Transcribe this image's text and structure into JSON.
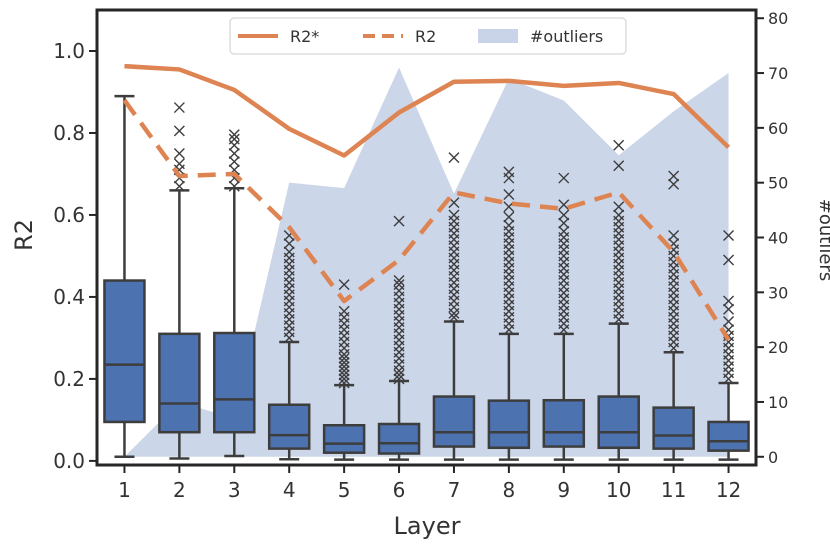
{
  "chart_data": {
    "type": "box",
    "xlabel": "Layer",
    "ylabel": "R2",
    "y2label": "#outliers",
    "categories": [
      "1",
      "2",
      "3",
      "4",
      "5",
      "6",
      "7",
      "8",
      "9",
      "10",
      "11",
      "12"
    ],
    "ylim": [
      -0.01,
      1.1
    ],
    "y2lim": [
      -1.5,
      81.5
    ],
    "yticks": [
      "0.0",
      "0.2",
      "0.4",
      "0.6",
      "0.8",
      "1.0"
    ],
    "y2ticks": [
      "0",
      "10",
      "20",
      "30",
      "40",
      "50",
      "60",
      "70",
      "80"
    ],
    "boxes": [
      {
        "whislo": 0.01,
        "q1": 0.095,
        "med": 0.235,
        "q3": 0.44,
        "whishi": 0.89,
        "fliers": []
      },
      {
        "whislo": 0.006,
        "q1": 0.07,
        "med": 0.14,
        "q3": 0.31,
        "whishi": 0.66,
        "fliers": [
          0.67,
          0.69,
          0.71,
          0.725,
          0.75,
          0.805,
          0.862
        ]
      },
      {
        "whislo": 0.012,
        "q1": 0.07,
        "med": 0.15,
        "q3": 0.312,
        "whishi": 0.665,
        "fliers": [
          0.67,
          0.69,
          0.71,
          0.73,
          0.75,
          0.77,
          0.785,
          0.796
        ]
      },
      {
        "whislo": 0.004,
        "q1": 0.03,
        "med": 0.063,
        "q3": 0.137,
        "whishi": 0.29,
        "fliers": [
          0.3,
          0.315,
          0.33,
          0.345,
          0.36,
          0.375,
          0.39,
          0.405,
          0.42,
          0.435,
          0.45,
          0.465,
          0.48,
          0.495,
          0.51,
          0.53,
          0.55
        ]
      },
      {
        "whislo": 0.003,
        "q1": 0.02,
        "med": 0.042,
        "q3": 0.087,
        "whishi": 0.185,
        "fliers": [
          0.19,
          0.2,
          0.21,
          0.22,
          0.23,
          0.24,
          0.25,
          0.26,
          0.275,
          0.29,
          0.305,
          0.32,
          0.335,
          0.35,
          0.365,
          0.43
        ]
      },
      {
        "whislo": 0.003,
        "q1": 0.018,
        "med": 0.043,
        "q3": 0.09,
        "whishi": 0.195,
        "fliers": [
          0.2,
          0.21,
          0.22,
          0.235,
          0.25,
          0.265,
          0.28,
          0.295,
          0.31,
          0.325,
          0.34,
          0.355,
          0.37,
          0.385,
          0.4,
          0.415,
          0.43,
          0.44,
          0.585
        ]
      },
      {
        "whislo": 0.003,
        "q1": 0.035,
        "med": 0.07,
        "q3": 0.157,
        "whishi": 0.34,
        "fliers": [
          0.35,
          0.36,
          0.375,
          0.39,
          0.405,
          0.42,
          0.435,
          0.45,
          0.465,
          0.48,
          0.495,
          0.51,
          0.525,
          0.54,
          0.555,
          0.57,
          0.585,
          0.6,
          0.63,
          0.74
        ]
      },
      {
        "whislo": 0.003,
        "q1": 0.032,
        "med": 0.07,
        "q3": 0.147,
        "whishi": 0.31,
        "fliers": [
          0.32,
          0.335,
          0.35,
          0.365,
          0.38,
          0.395,
          0.41,
          0.425,
          0.44,
          0.455,
          0.47,
          0.485,
          0.5,
          0.515,
          0.53,
          0.545,
          0.56,
          0.575,
          0.595,
          0.62,
          0.65,
          0.69,
          0.705
        ]
      },
      {
        "whislo": 0.003,
        "q1": 0.035,
        "med": 0.07,
        "q3": 0.148,
        "whishi": 0.31,
        "fliers": [
          0.32,
          0.335,
          0.35,
          0.365,
          0.38,
          0.395,
          0.41,
          0.425,
          0.44,
          0.455,
          0.47,
          0.485,
          0.5,
          0.515,
          0.53,
          0.545,
          0.56,
          0.58,
          0.6,
          0.625,
          0.69
        ]
      },
      {
        "whislo": 0.003,
        "q1": 0.032,
        "med": 0.07,
        "q3": 0.157,
        "whishi": 0.335,
        "fliers": [
          0.345,
          0.36,
          0.375,
          0.39,
          0.405,
          0.42,
          0.435,
          0.45,
          0.465,
          0.48,
          0.495,
          0.51,
          0.525,
          0.54,
          0.555,
          0.57,
          0.585,
          0.6,
          0.62,
          0.72,
          0.77
        ]
      },
      {
        "whislo": 0.003,
        "q1": 0.03,
        "med": 0.062,
        "q3": 0.13,
        "whishi": 0.265,
        "fliers": [
          0.275,
          0.29,
          0.305,
          0.32,
          0.335,
          0.35,
          0.365,
          0.38,
          0.395,
          0.41,
          0.425,
          0.44,
          0.455,
          0.47,
          0.485,
          0.5,
          0.515,
          0.53,
          0.55,
          0.675,
          0.695
        ]
      },
      {
        "whislo": 0.003,
        "q1": 0.025,
        "med": 0.048,
        "q3": 0.095,
        "whishi": 0.19,
        "fliers": [
          0.2,
          0.215,
          0.23,
          0.245,
          0.26,
          0.275,
          0.29,
          0.305,
          0.32,
          0.34,
          0.37,
          0.39,
          0.49,
          0.55
        ]
      }
    ],
    "series": [
      {
        "name": "R2*",
        "style": "solid",
        "color": "#DD8452",
        "values": [
          0.963,
          0.955,
          0.905,
          0.81,
          0.745,
          0.85,
          0.925,
          0.927,
          0.915,
          0.922,
          0.895,
          0.765
        ]
      },
      {
        "name": "R2",
        "style": "dashed",
        "color": "#DD8452",
        "values": [
          0.88,
          0.695,
          0.7,
          0.57,
          0.39,
          0.49,
          0.655,
          0.628,
          0.615,
          0.655,
          0.51,
          0.295
        ]
      },
      {
        "name": "#outliers",
        "style": "area",
        "axis": "right",
        "color": "#C9D4E8",
        "values": [
          0,
          10,
          7,
          50,
          49,
          71,
          48,
          69,
          65,
          55,
          63,
          70
        ]
      }
    ],
    "legend": {
      "position": "top-center",
      "entries": [
        "R2*",
        "R2",
        "#outliers"
      ]
    },
    "box_color": "#4C72B0",
    "box_edge_color": "#3d3d3d",
    "grid": false
  }
}
